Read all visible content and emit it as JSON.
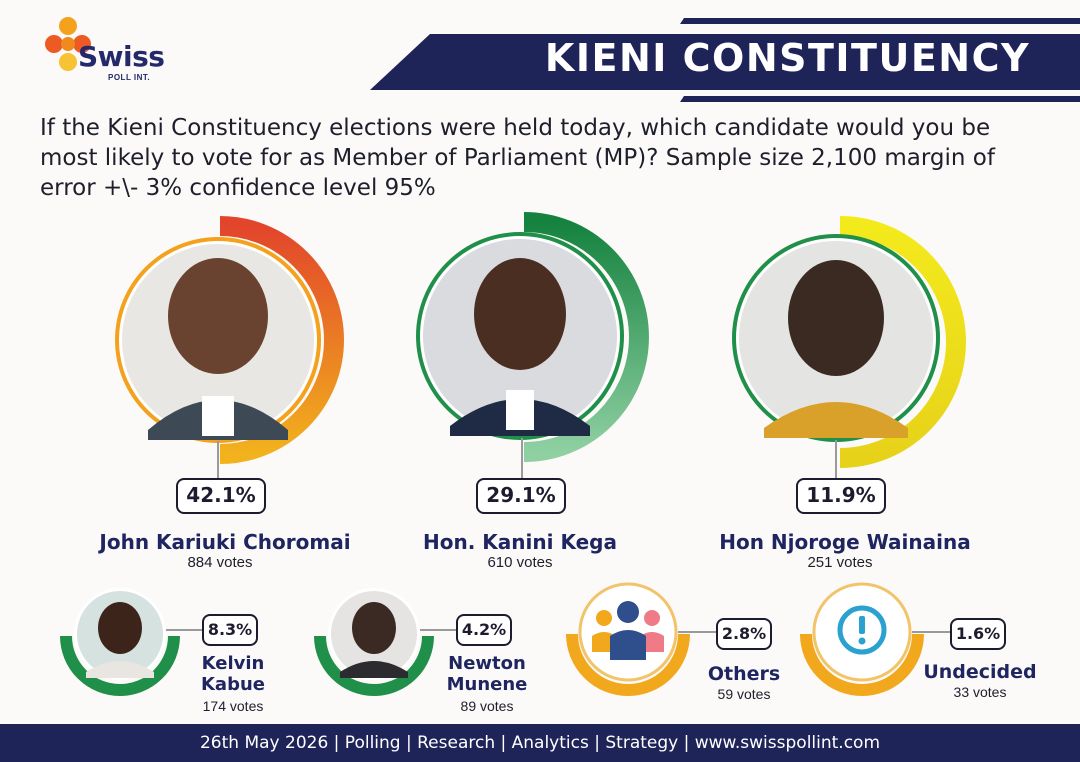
{
  "brand": {
    "name": "Swiss",
    "sub": "POLL INT."
  },
  "banner": {
    "title": "KIENI CONSTITUENCY"
  },
  "question": "If the Kieni Constituency elections were held today, which candidate would you be most likely to vote for as Member of Parliament (MP)? Sample size 2,100 margin of error +\\- 3% confidence level 95%",
  "colors": {
    "navy": "#1f2458",
    "orange": "#e6552a",
    "amber": "#f2a81d",
    "green": "#1f8f49",
    "lightgreen": "#8fd0a2",
    "yellow": "#f3ea1c"
  },
  "chart_data": {
    "type": "pie",
    "title": "KIENI CONSTITUENCY",
    "categories": [
      "John Kariuki Choromai",
      "Hon. Kanini Kega",
      "Hon Njoroge Wainaina",
      "Kelvin Kabue",
      "Newton Munene",
      "Others",
      "Undecided"
    ],
    "values": [
      42.1,
      29.1,
      11.9,
      8.3,
      4.2,
      2.8,
      1.6
    ],
    "votes": [
      884,
      610,
      251,
      174,
      89,
      59,
      33
    ]
  },
  "main": [
    {
      "name": "John Kariuki Choromai",
      "pct": "42.1%",
      "votes": "884 votes"
    },
    {
      "name": "Hon. Kanini Kega",
      "pct": "29.1%",
      "votes": "610 votes"
    },
    {
      "name": "Hon Njoroge Wainaina",
      "pct": "11.9%",
      "votes": "251 votes"
    }
  ],
  "minor": [
    {
      "name1": "Kelvin",
      "name2": "Kabue",
      "pct": "8.3%",
      "votes": "174 votes"
    },
    {
      "name1": "Newton",
      "name2": "Munene",
      "pct": "4.2%",
      "votes": "89 votes"
    },
    {
      "name1": "Others",
      "pct": "2.8%",
      "votes": "59 votes",
      "icon": "people-icon"
    },
    {
      "name1": "Undecided",
      "pct": "1.6%",
      "votes": "33 votes",
      "icon": "exclamation-icon"
    }
  ],
  "footer": "26th May 2026 | Polling | Research | Analytics | Strategy | www.swisspollint.com"
}
